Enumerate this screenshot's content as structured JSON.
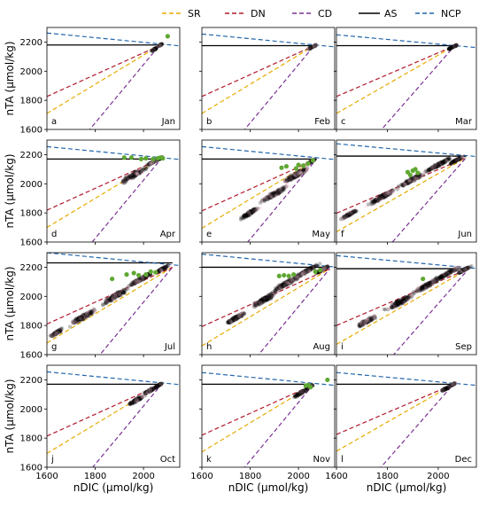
{
  "chart_data": {
    "type": "scatter",
    "xlabel": "nDIC (μmol/kg)",
    "ylabel": "nTA (μmol/kg)",
    "xlim": [
      1600,
      2150
    ],
    "ylim": [
      1600,
      2300
    ],
    "x_ticks": [
      1600,
      1800,
      2000
    ],
    "y_ticks": [
      1600,
      1800,
      2000,
      2200
    ],
    "legend": {
      "placement": "top",
      "entries": [
        {
          "label": "SR",
          "color": "#e6ab02",
          "style": "dashed"
        },
        {
          "label": "DN",
          "color": "#b2182b",
          "style": "dashed"
        },
        {
          "label": "CD",
          "color": "#7b3294",
          "style": "dashed"
        },
        {
          "label": "AS",
          "color": "#000000",
          "style": "solid"
        },
        {
          "label": "NCP",
          "color": "#2166ac",
          "style": "dashed"
        }
      ]
    },
    "panels": [
      {
        "letter": "a",
        "month": "Jan",
        "end": [
          2065,
          2175
        ],
        "as_level": 2180,
        "ncp_left": 2262,
        "cloud": [
          {
            "x": 2045,
            "y": 2150,
            "sx": 8,
            "sy": 10
          },
          {
            "x": 2070,
            "y": 2180,
            "sx": 6,
            "sy": 6
          }
        ],
        "obs": [
          [
            2100,
            2240
          ]
        ]
      },
      {
        "letter": "b",
        "month": "Feb",
        "end": [
          2065,
          2175
        ],
        "as_level": 2175,
        "ncp_left": 2255,
        "cloud": [
          {
            "x": 2050,
            "y": 2160,
            "sx": 8,
            "sy": 8
          },
          {
            "x": 2068,
            "y": 2175,
            "sx": 5,
            "sy": 5
          }
        ],
        "obs": []
      },
      {
        "letter": "c",
        "month": "Mar",
        "end": [
          2065,
          2175
        ],
        "as_level": 2175,
        "ncp_left": 2250,
        "cloud": [
          {
            "x": 2050,
            "y": 2160,
            "sx": 8,
            "sy": 8
          },
          {
            "x": 2068,
            "y": 2175,
            "sx": 5,
            "sy": 5
          }
        ],
        "obs": []
      },
      {
        "letter": "d",
        "month": "Apr",
        "end": [
          2075,
          2175
        ],
        "as_level": 2170,
        "ncp_left": 2255,
        "cloud": [
          {
            "x": 1960,
            "y": 2060,
            "sx": 40,
            "sy": 40
          },
          {
            "x": 2040,
            "y": 2150,
            "sx": 20,
            "sy": 15
          },
          {
            "x": 2070,
            "y": 2175,
            "sx": 8,
            "sy": 6
          }
        ],
        "obs": [
          [
            1920,
            2180
          ],
          [
            1950,
            2180
          ],
          [
            2010,
            2175
          ],
          [
            2040,
            2170
          ],
          [
            2060,
            2175
          ],
          [
            2070,
            2180
          ],
          [
            2080,
            2175
          ],
          [
            1990,
            2170
          ]
        ]
      },
      {
        "letter": "e",
        "month": "May",
        "end": [
          2075,
          2170
        ],
        "as_level": 2170,
        "ncp_left": 2255,
        "cloud": [
          {
            "x": 1800,
            "y": 1800,
            "sx": 30,
            "sy": 30
          },
          {
            "x": 1900,
            "y": 1930,
            "sx": 40,
            "sy": 40
          },
          {
            "x": 1990,
            "y": 2060,
            "sx": 40,
            "sy": 40
          },
          {
            "x": 2050,
            "y": 2150,
            "sx": 15,
            "sy": 12
          }
        ],
        "obs": [
          [
            1930,
            2110
          ],
          [
            1950,
            2120
          ],
          [
            1990,
            2105
          ],
          [
            2020,
            2125
          ],
          [
            2040,
            2140
          ],
          [
            2060,
            2160
          ],
          [
            2000,
            2130
          ]
        ]
      },
      {
        "letter": "f",
        "month": "Jun",
        "end": [
          2110,
          2180
        ],
        "as_level": 2190,
        "ncp_left": 2275,
        "cloud": [
          {
            "x": 1650,
            "y": 1790,
            "sx": 25,
            "sy": 25
          },
          {
            "x": 1780,
            "y": 1910,
            "sx": 40,
            "sy": 35
          },
          {
            "x": 1900,
            "y": 2030,
            "sx": 40,
            "sy": 35
          },
          {
            "x": 2000,
            "y": 2130,
            "sx": 40,
            "sy": 25
          },
          {
            "x": 2070,
            "y": 2160,
            "sx": 20,
            "sy": 15
          }
        ],
        "obs": [
          [
            1880,
            2080
          ],
          [
            1890,
            2060
          ],
          [
            1900,
            2090
          ],
          [
            1920,
            2075
          ],
          [
            1910,
            2100
          ]
        ]
      },
      {
        "letter": "g",
        "month": "Jul",
        "end": [
          2120,
          2200
        ],
        "as_level": 2230,
        "ncp_left": 2300,
        "cloud": [
          {
            "x": 1640,
            "y": 1750,
            "sx": 20,
            "sy": 25
          },
          {
            "x": 1750,
            "y": 1860,
            "sx": 40,
            "sy": 40
          },
          {
            "x": 1880,
            "y": 2000,
            "sx": 40,
            "sy": 40
          },
          {
            "x": 1990,
            "y": 2120,
            "sx": 40,
            "sy": 30
          },
          {
            "x": 2080,
            "y": 2190,
            "sx": 20,
            "sy": 15
          }
        ],
        "obs": [
          [
            1870,
            2120
          ],
          [
            1930,
            2150
          ],
          [
            1960,
            2160
          ],
          [
            1980,
            2145
          ],
          [
            2010,
            2150
          ],
          [
            2030,
            2170
          ],
          [
            2050,
            2165
          ]
        ]
      },
      {
        "letter": "h",
        "month": "Aug",
        "end": [
          2130,
          2190
        ],
        "as_level": 2200,
        "ncp_left": 2290,
        "cloud": [
          {
            "x": 1740,
            "y": 1850,
            "sx": 30,
            "sy": 30
          },
          {
            "x": 1860,
            "y": 1980,
            "sx": 40,
            "sy": 40
          },
          {
            "x": 1950,
            "y": 2090,
            "sx": 40,
            "sy": 40
          },
          {
            "x": 2030,
            "y": 2170,
            "sx": 40,
            "sy": 25
          },
          {
            "x": 2100,
            "y": 2185,
            "sx": 20,
            "sy": 12
          }
        ],
        "obs": [
          [
            1920,
            2140
          ],
          [
            1940,
            2145
          ],
          [
            1960,
            2140
          ],
          [
            1980,
            2150
          ],
          [
            2070,
            2170
          ],
          [
            2090,
            2180
          ]
        ]
      },
      {
        "letter": "i",
        "month": "Sep",
        "end": [
          2120,
          2190
        ],
        "as_level": 2190,
        "ncp_left": 2280,
        "cloud": [
          {
            "x": 1720,
            "y": 1830,
            "sx": 30,
            "sy": 30
          },
          {
            "x": 1850,
            "y": 1960,
            "sx": 40,
            "sy": 40
          },
          {
            "x": 1960,
            "y": 2080,
            "sx": 40,
            "sy": 40
          },
          {
            "x": 2040,
            "y": 2160,
            "sx": 40,
            "sy": 25
          },
          {
            "x": 2100,
            "y": 2180,
            "sx": 20,
            "sy": 12
          }
        ],
        "obs": [
          [
            1940,
            2120
          ]
        ]
      },
      {
        "letter": "j",
        "month": "Oct",
        "end": [
          2075,
          2170
        ],
        "as_level": 2170,
        "ncp_left": 2255,
        "cloud": [
          {
            "x": 1970,
            "y": 2060,
            "sx": 25,
            "sy": 25
          },
          {
            "x": 2030,
            "y": 2130,
            "sx": 25,
            "sy": 20
          },
          {
            "x": 2065,
            "y": 2165,
            "sx": 10,
            "sy": 8
          }
        ],
        "obs": []
      },
      {
        "letter": "k",
        "month": "Nov",
        "end": [
          2060,
          2165
        ],
        "as_level": 2170,
        "ncp_left": 2250,
        "cloud": [
          {
            "x": 2010,
            "y": 2110,
            "sx": 20,
            "sy": 20
          },
          {
            "x": 2045,
            "y": 2150,
            "sx": 12,
            "sy": 10
          }
        ],
        "obs": [
          [
            2030,
            2160
          ],
          [
            2040,
            2165
          ],
          [
            2050,
            2150
          ],
          [
            2120,
            2200
          ]
        ]
      },
      {
        "letter": "l",
        "month": "Dec",
        "end": [
          2060,
          2170
        ],
        "as_level": 2170,
        "ncp_left": 2250,
        "cloud": [
          {
            "x": 2030,
            "y": 2140,
            "sx": 15,
            "sy": 15
          },
          {
            "x": 2060,
            "y": 2170,
            "sx": 8,
            "sy": 8
          }
        ],
        "obs": []
      }
    ],
    "line_slopes": {
      "SR": 1.0,
      "DN": 0.75,
      "CD": 2.0,
      "NCP": -0.16
    },
    "obs_color": "#5fa832",
    "cloud_color": "#000000",
    "cloud_halo": "#f4c2d2"
  }
}
